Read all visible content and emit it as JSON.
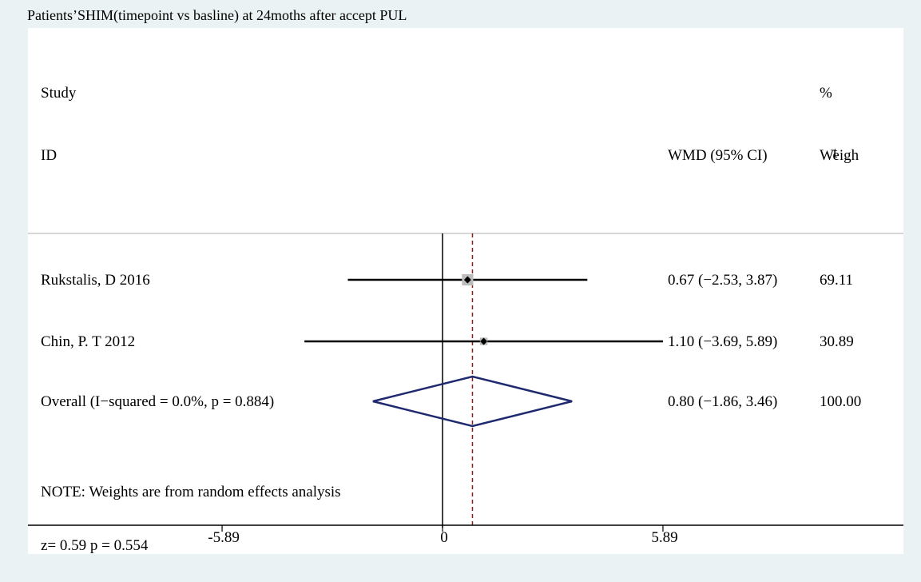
{
  "chart_data": {
    "type": "forest",
    "title": "Patients’SHIM(timepoint vs basline)  at 24moths after accept PUL",
    "headers": {
      "study_line1": "Study",
      "study_line2": "ID",
      "effect": "WMD (95% CI)",
      "weight_line1": "%",
      "weight_line2": "Weigh",
      "weight_partial_char": "t"
    },
    "studies": [
      {
        "name": "Rukstalis, D 2016",
        "wmd": 0.67,
        "ci_low": -2.53,
        "ci_high": 3.87,
        "label": "0.67 (−2.53, 3.87)",
        "weight": "69.11"
      },
      {
        "name": "Chin, P. T 2012",
        "wmd": 1.1,
        "ci_low": -3.69,
        "ci_high": 5.89,
        "label": "1.10 (−3.69, 5.89)",
        "weight": "30.89"
      }
    ],
    "overall": {
      "name": "Overall  (I−squared = 0.0%, p = 0.884)",
      "wmd": 0.8,
      "ci_low": -1.86,
      "ci_high": 3.46,
      "label": "0.80 (−1.86, 3.46)",
      "weight": "100.00"
    },
    "note": "NOTE: Weights are from random effects analysis",
    "ztest": "z=   0.59 p = 0.554",
    "x_ticks": [
      {
        "value": -5.89,
        "label": "-5.89"
      },
      {
        "value": 0,
        "label": "0"
      },
      {
        "value": 5.89,
        "label": "5.89"
      }
    ],
    "xlim": [
      -5.89,
      5.89
    ],
    "colors": {
      "background": "#eaf2f3",
      "panel": "#ffffff",
      "ci_line": "#000000",
      "diamond": "#1f2a6e",
      "overall_line": "#8b1a1a",
      "box": "#bdbdbd"
    }
  }
}
